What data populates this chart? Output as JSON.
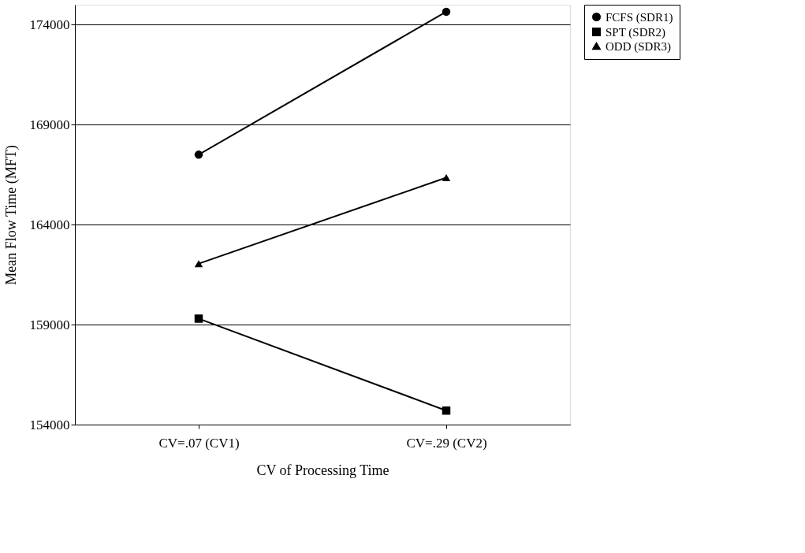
{
  "chart_data": {
    "type": "line",
    "xlabel": "CV of Processing Time",
    "ylabel": "Mean Flow Time (MFT)",
    "categories": [
      "CV=.07 (CV1)",
      "CV=.29 (CV2)"
    ],
    "series": [
      {
        "name": "FCFS (SDR1)",
        "color": "#000000",
        "marker": "circle",
        "values": [
          167500,
          174650
        ]
      },
      {
        "name": "SPT (SDR2)",
        "color": "#000000",
        "marker": "square",
        "values": [
          159300,
          154700
        ]
      },
      {
        "name": "ODD (SDR3)",
        "color": "#000000",
        "marker": "triangle",
        "values": [
          162050,
          166350
        ]
      }
    ],
    "ylim": [
      154000,
      175000
    ],
    "yticks": [
      154000,
      159000,
      164000,
      169000,
      174000
    ],
    "grid": "y",
    "legend": "right",
    "line_style": "solid"
  }
}
